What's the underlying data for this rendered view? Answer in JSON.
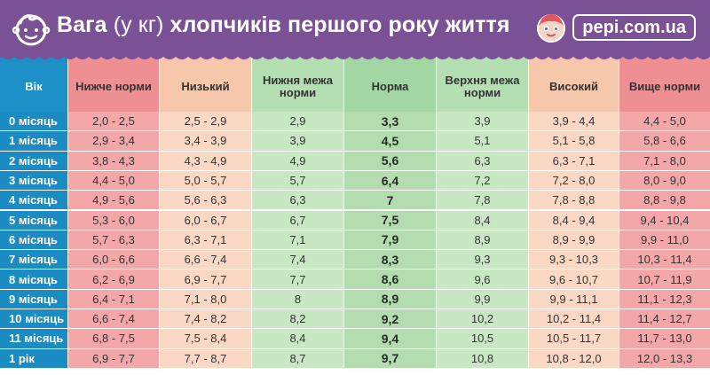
{
  "header": {
    "title_bold": "Вага",
    "title_unit": "(у кг)",
    "title_rest": "хлопчиків першого року життя",
    "brand": "pepi.com.ua",
    "baby_icon": "baby-face-icon",
    "brand_icon": "baby-doll-icon"
  },
  "colors": {
    "banner": "#7b5196",
    "age_header": "#1e90c8",
    "age_cell": "#1b8bc3",
    "below_norm_header": "#ee8f93",
    "below_norm_cell": "#f3a7a8",
    "low_header": "#f7c7ac",
    "low_cell": "#fad8c4",
    "lower_bound_header": "#b3dfb3",
    "lower_bound_cell": "#c8e8c4",
    "norm_header": "#a2d6a2",
    "norm_cell": "#b3ddae",
    "upper_bound_header": "#b3dfb3",
    "upper_bound_cell": "#c8e8c4",
    "high_header": "#f7c7ac",
    "high_cell": "#fad8c4",
    "above_norm_header": "#ee8f93",
    "above_norm_cell": "#f3a7a8"
  },
  "table": {
    "columns": [
      "Вік",
      "Нижче норми",
      "Низький",
      "Нижня межа норми",
      "Норма",
      "Верхня межа норми",
      "Високий",
      "Вище норми"
    ],
    "rows": [
      [
        "0 місяць",
        "2,0 - 2,5",
        "2,5 - 2,9",
        "2,9",
        "3,3",
        "3,9",
        "3,9 - 4,4",
        "4,4 - 5,0"
      ],
      [
        "1 місяць",
        "2,9 - 3,4",
        "3,4 - 3,9",
        "3,9",
        "4,5",
        "5,1",
        "5,1 - 5,8",
        "5,8 - 6,6"
      ],
      [
        "2 місяць",
        "3,8 - 4,3",
        "4,3 - 4,9",
        "4,9",
        "5,6",
        "6,3",
        "6,3 - 7,1",
        "7,1 - 8,0"
      ],
      [
        "3 місяць",
        "4,4 - 5,0",
        "5,0 - 5,7",
        "5,7",
        "6,4",
        "7,2",
        "7,2 - 8,0",
        "8,0 - 9,0"
      ],
      [
        "4 місяць",
        "4,9 - 5,6",
        "5,6 - 6,3",
        "6,3",
        "7",
        "7,8",
        "7,8 - 8,8",
        "8,8 - 9,8"
      ],
      [
        "5 місяць",
        "5,3 - 6,0",
        "6,0 - 6,7",
        "6,7",
        "7,5",
        "8,4",
        "8,4 - 9,4",
        "9,4  - 10,4"
      ],
      [
        "6 місяць",
        "5,7 - 6,3",
        "6,3 - 7,1",
        "7,1",
        "7,9",
        "8,9",
        "8,9 - 9,9",
        "9,9 - 11,0"
      ],
      [
        "7 місяць",
        "6,0 - 6,6",
        "6,6 - 7,4",
        "7,4",
        "8,3",
        "9,3",
        "9,3 - 10,3",
        "10,3 - 11,4"
      ],
      [
        "8 місяць",
        "6,2 - 6,9",
        "6,9 - 7,7",
        "7,7",
        "8,6",
        "9,6",
        "9,6 - 10,7",
        "10,7 - 11,9"
      ],
      [
        "9 місяць",
        "6,4 - 7,1",
        "7,1 - 8,0",
        "8",
        "8,9",
        "9,9",
        "9,9 - 11,1",
        "11,1 - 12,3"
      ],
      [
        "10 місяць",
        "6,6 - 7,4",
        "7,4 - 8,2",
        "8,2",
        "9,2",
        "10,2",
        "10,2 - 11,4",
        "11,4 - 12,7"
      ],
      [
        "11 місяць",
        "6,8 - 7,5",
        "7,5 - 8,4",
        "8,4",
        "9,4",
        "10,5",
        "10,5 - 11,7",
        "11,7 - 13,0"
      ],
      [
        "1 рік",
        "6,9 - 7,7",
        "7,7 - 8,7",
        "8,7",
        "9,7",
        "10,8",
        "10,8 - 12,0",
        "12,0 - 13,3"
      ]
    ]
  }
}
